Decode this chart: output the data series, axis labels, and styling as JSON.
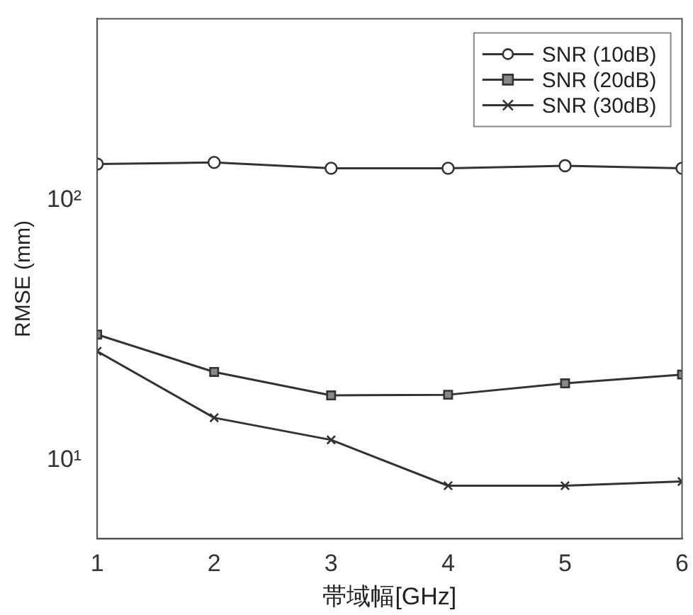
{
  "chart_data": {
    "type": "line",
    "xlabel": "帯域幅[GHz]",
    "ylabel": "RMSE (mm)",
    "x": [
      1,
      2,
      3,
      4,
      5,
      6
    ],
    "xlim": [
      1,
      6
    ],
    "xticks": [
      1,
      2,
      3,
      4,
      5,
      6
    ],
    "ylim": [
      5,
      500
    ],
    "yticks": [
      {
        "value": 10,
        "label": "10¹"
      },
      {
        "value": 100,
        "label": "10²"
      }
    ],
    "log": "y",
    "grid": false,
    "legend": "top right",
    "series": [
      {
        "name": "SNR (10dB)",
        "color": "#333333",
        "marker": "circle",
        "values": [
          138,
          140,
          133,
          133,
          136,
          133
        ]
      },
      {
        "name": "SNR (20dB)",
        "color": "#333333",
        "marker": "square",
        "values": [
          30.5,
          21.9,
          17.8,
          17.9,
          19.8,
          21.4
        ]
      },
      {
        "name": "SNR (30dB)",
        "color": "#333333",
        "marker": "cross",
        "values": [
          26.3,
          14.6,
          12.0,
          8.0,
          8.0,
          8.3
        ]
      }
    ]
  }
}
